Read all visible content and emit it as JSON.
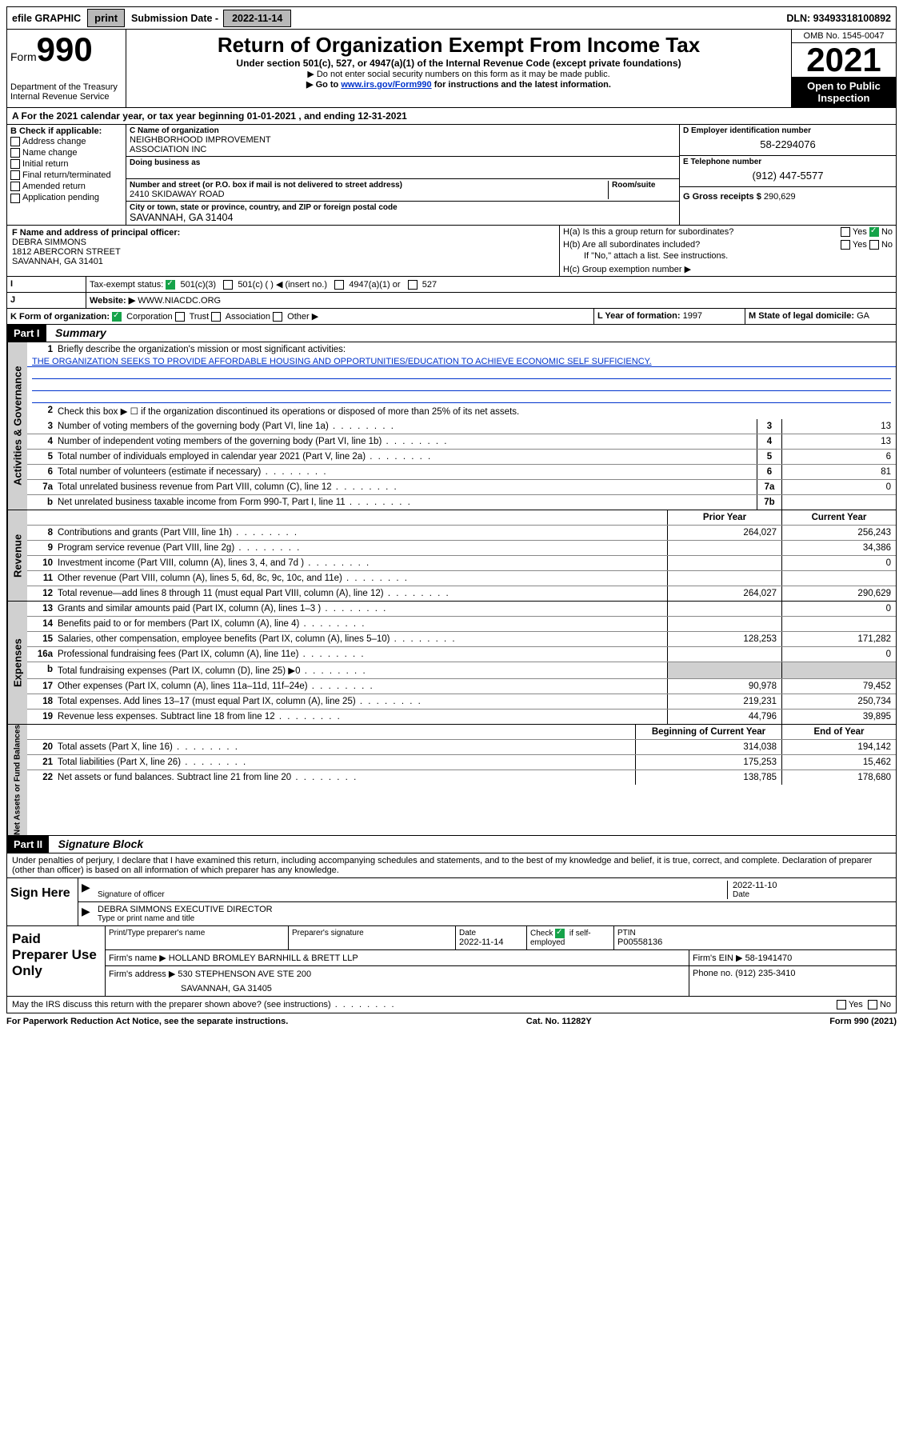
{
  "topbar": {
    "efile_label": "efile GRAPHIC",
    "print_btn": "print",
    "sub_date_label": "Submission Date -",
    "sub_date": "2022-11-14",
    "dln_label": "DLN:",
    "dln": "93493318100892"
  },
  "header": {
    "form_word": "Form",
    "form_num": "990",
    "dept": "Department of the Treasury",
    "irs": "Internal Revenue Service",
    "title": "Return of Organization Exempt From Income Tax",
    "sub1": "Under section 501(c), 527, or 4947(a)(1) of the Internal Revenue Code (except private foundations)",
    "sub2": "▶ Do not enter social security numbers on this form as it may be made public.",
    "sub3a": "▶ Go to ",
    "sub3_link": "www.irs.gov/Form990",
    "sub3b": " for instructions and the latest information.",
    "omb": "OMB No. 1545-0047",
    "year": "2021",
    "open_pub": "Open to Public Inspection"
  },
  "line_a": {
    "prefix": "A For the 2021 calendar year, or tax year beginning ",
    "begin": "01-01-2021",
    "mid": " , and ending ",
    "end": "12-31-2021"
  },
  "box_b": {
    "title": "B Check if applicable:",
    "opts": [
      "Address change",
      "Name change",
      "Initial return",
      "Final return/terminated",
      "Amended return",
      "Application pending"
    ]
  },
  "box_c": {
    "label_c": "C Name of organization",
    "org1": "NEIGHBORHOOD IMPROVEMENT",
    "org2": "ASSOCIATION INC",
    "dba_label": "Doing business as",
    "addr_label": "Number and street (or P.O. box if mail is not delivered to street address)",
    "room_label": "Room/suite",
    "street": "2410 SKIDAWAY ROAD",
    "city_label": "City or town, state or province, country, and ZIP or foreign postal code",
    "city": "SAVANNAH, GA  31404"
  },
  "box_d": {
    "label": "D Employer identification number",
    "val": "58-2294076"
  },
  "box_e": {
    "label": "E Telephone number",
    "val": "(912) 447-5577"
  },
  "box_g": {
    "label": "G Gross receipts $",
    "val": "290,629"
  },
  "box_f": {
    "label": "F Name and address of principal officer:",
    "name": "DEBRA SIMMONS",
    "addr1": "1812 ABERCORN STREET",
    "addr2": "SAVANNAH, GA  31401"
  },
  "box_h": {
    "ha": "H(a)  Is this a group return for subordinates?",
    "hb": "H(b)  Are all subordinates included?",
    "hb_note": "If \"No,\" attach a list. See instructions.",
    "hc": "H(c)  Group exemption number ▶",
    "yes": "Yes",
    "no": "No"
  },
  "row_i": {
    "label": "Tax-exempt status:",
    "o1": "501(c)(3)",
    "o2": "501(c) (  ) ◀ (insert no.)",
    "o3": "4947(a)(1) or",
    "o4": "527"
  },
  "row_j": {
    "label": "Website: ▶",
    "val": "WWW.NIACDC.ORG"
  },
  "row_k": {
    "label": "K Form of organization:",
    "o1": "Corporation",
    "o2": "Trust",
    "o3": "Association",
    "o4": "Other ▶"
  },
  "row_l": {
    "label": "L Year of formation:",
    "val": "1997"
  },
  "row_m": {
    "label": "M State of legal domicile:",
    "val": "GA"
  },
  "part1": {
    "tag": "Part I",
    "title": "Summary",
    "line1_label": "Briefly describe the organization's mission or most significant activities:",
    "mission": "THE ORGANIZATION SEEKS TO PROVIDE AFFORDABLE HOUSING AND OPPORTUNITIES/EDUCATION TO ACHIEVE ECONOMIC SELF SUFFICIENCY.",
    "line2": "Check this box ▶ ☐  if the organization discontinued its operations or disposed of more than 25% of its net assets.",
    "prior_year": "Prior Year",
    "current_year": "Current Year",
    "begin_year": "Beginning of Current Year",
    "end_year": "End of Year"
  },
  "gov_lines": [
    {
      "n": "3",
      "t": "Number of voting members of the governing body (Part VI, line 1a)",
      "box": "3",
      "v": "13"
    },
    {
      "n": "4",
      "t": "Number of independent voting members of the governing body (Part VI, line 1b)",
      "box": "4",
      "v": "13"
    },
    {
      "n": "5",
      "t": "Total number of individuals employed in calendar year 2021 (Part V, line 2a)",
      "box": "5",
      "v": "6"
    },
    {
      "n": "6",
      "t": "Total number of volunteers (estimate if necessary)",
      "box": "6",
      "v": "81"
    },
    {
      "n": "7a",
      "t": "Total unrelated business revenue from Part VIII, column (C), line 12",
      "box": "7a",
      "v": "0"
    },
    {
      "n": "b",
      "t": "Net unrelated business taxable income from Form 990-T, Part I, line 11",
      "box": "7b",
      "v": ""
    }
  ],
  "rev_lines": [
    {
      "n": "8",
      "t": "Contributions and grants (Part VIII, line 1h)",
      "p": "264,027",
      "c": "256,243"
    },
    {
      "n": "9",
      "t": "Program service revenue (Part VIII, line 2g)",
      "p": "",
      "c": "34,386"
    },
    {
      "n": "10",
      "t": "Investment income (Part VIII, column (A), lines 3, 4, and 7d )",
      "p": "",
      "c": "0"
    },
    {
      "n": "11",
      "t": "Other revenue (Part VIII, column (A), lines 5, 6d, 8c, 9c, 10c, and 11e)",
      "p": "",
      "c": ""
    },
    {
      "n": "12",
      "t": "Total revenue—add lines 8 through 11 (must equal Part VIII, column (A), line 12)",
      "p": "264,027",
      "c": "290,629"
    }
  ],
  "exp_lines": [
    {
      "n": "13",
      "t": "Grants and similar amounts paid (Part IX, column (A), lines 1–3 )",
      "p": "",
      "c": "0"
    },
    {
      "n": "14",
      "t": "Benefits paid to or for members (Part IX, column (A), line 4)",
      "p": "",
      "c": ""
    },
    {
      "n": "15",
      "t": "Salaries, other compensation, employee benefits (Part IX, column (A), lines 5–10)",
      "p": "128,253",
      "c": "171,282"
    },
    {
      "n": "16a",
      "t": "Professional fundraising fees (Part IX, column (A), line 11e)",
      "p": "",
      "c": "0"
    },
    {
      "n": "b",
      "t": "Total fundraising expenses (Part IX, column (D), line 25) ▶0",
      "p": "grey",
      "c": "grey"
    },
    {
      "n": "17",
      "t": "Other expenses (Part IX, column (A), lines 11a–11d, 11f–24e)",
      "p": "90,978",
      "c": "79,452"
    },
    {
      "n": "18",
      "t": "Total expenses. Add lines 13–17 (must equal Part IX, column (A), line 25)",
      "p": "219,231",
      "c": "250,734"
    },
    {
      "n": "19",
      "t": "Revenue less expenses. Subtract line 18 from line 12",
      "p": "44,796",
      "c": "39,895"
    }
  ],
  "net_lines": [
    {
      "n": "20",
      "t": "Total assets (Part X, line 16)",
      "p": "314,038",
      "c": "194,142"
    },
    {
      "n": "21",
      "t": "Total liabilities (Part X, line 26)",
      "p": "175,253",
      "c": "15,462"
    },
    {
      "n": "22",
      "t": "Net assets or fund balances. Subtract line 21 from line 20",
      "p": "138,785",
      "c": "178,680"
    }
  ],
  "vert": {
    "gov": "Activities & Governance",
    "rev": "Revenue",
    "exp": "Expenses",
    "net": "Net Assets or Fund Balances"
  },
  "part2": {
    "tag": "Part II",
    "title": "Signature Block",
    "decl": "Under penalties of perjury, I declare that I have examined this return, including accompanying schedules and statements, and to the best of my knowledge and belief, it is true, correct, and complete. Declaration of preparer (other than officer) is based on all information of which preparer has any knowledge."
  },
  "sign": {
    "here": "Sign Here",
    "sig_officer": "Signature of officer",
    "date": "Date",
    "date_val": "2022-11-10",
    "name_line": "DEBRA SIMMONS  EXECUTIVE DIRECTOR",
    "name_label": "Type or print name and title"
  },
  "prep": {
    "title": "Paid Preparer Use Only",
    "h1": "Print/Type preparer's name",
    "h2": "Preparer's signature",
    "h3": "Date",
    "date": "2022-11-14",
    "h4a": "Check",
    "h4b": "if self-employed",
    "h5": "PTIN",
    "ptin": "P00558136",
    "firm_label": "Firm's name    ▶",
    "firm": "HOLLAND BROMLEY BARNHILL & BRETT LLP",
    "ein_label": "Firm's EIN ▶",
    "ein": "58-1941470",
    "addr_label": "Firm's address ▶",
    "addr1": "530 STEPHENSON AVE STE 200",
    "addr2": "SAVANNAH, GA  31405",
    "phone_label": "Phone no.",
    "phone": "(912) 235-3410",
    "discuss": "May the IRS discuss this return with the preparer shown above? (see instructions)",
    "yes": "Yes",
    "no": "No"
  },
  "footer": {
    "pra": "For Paperwork Reduction Act Notice, see the separate instructions.",
    "cat": "Cat. No. 11282Y",
    "form": "Form 990 (2021)"
  }
}
